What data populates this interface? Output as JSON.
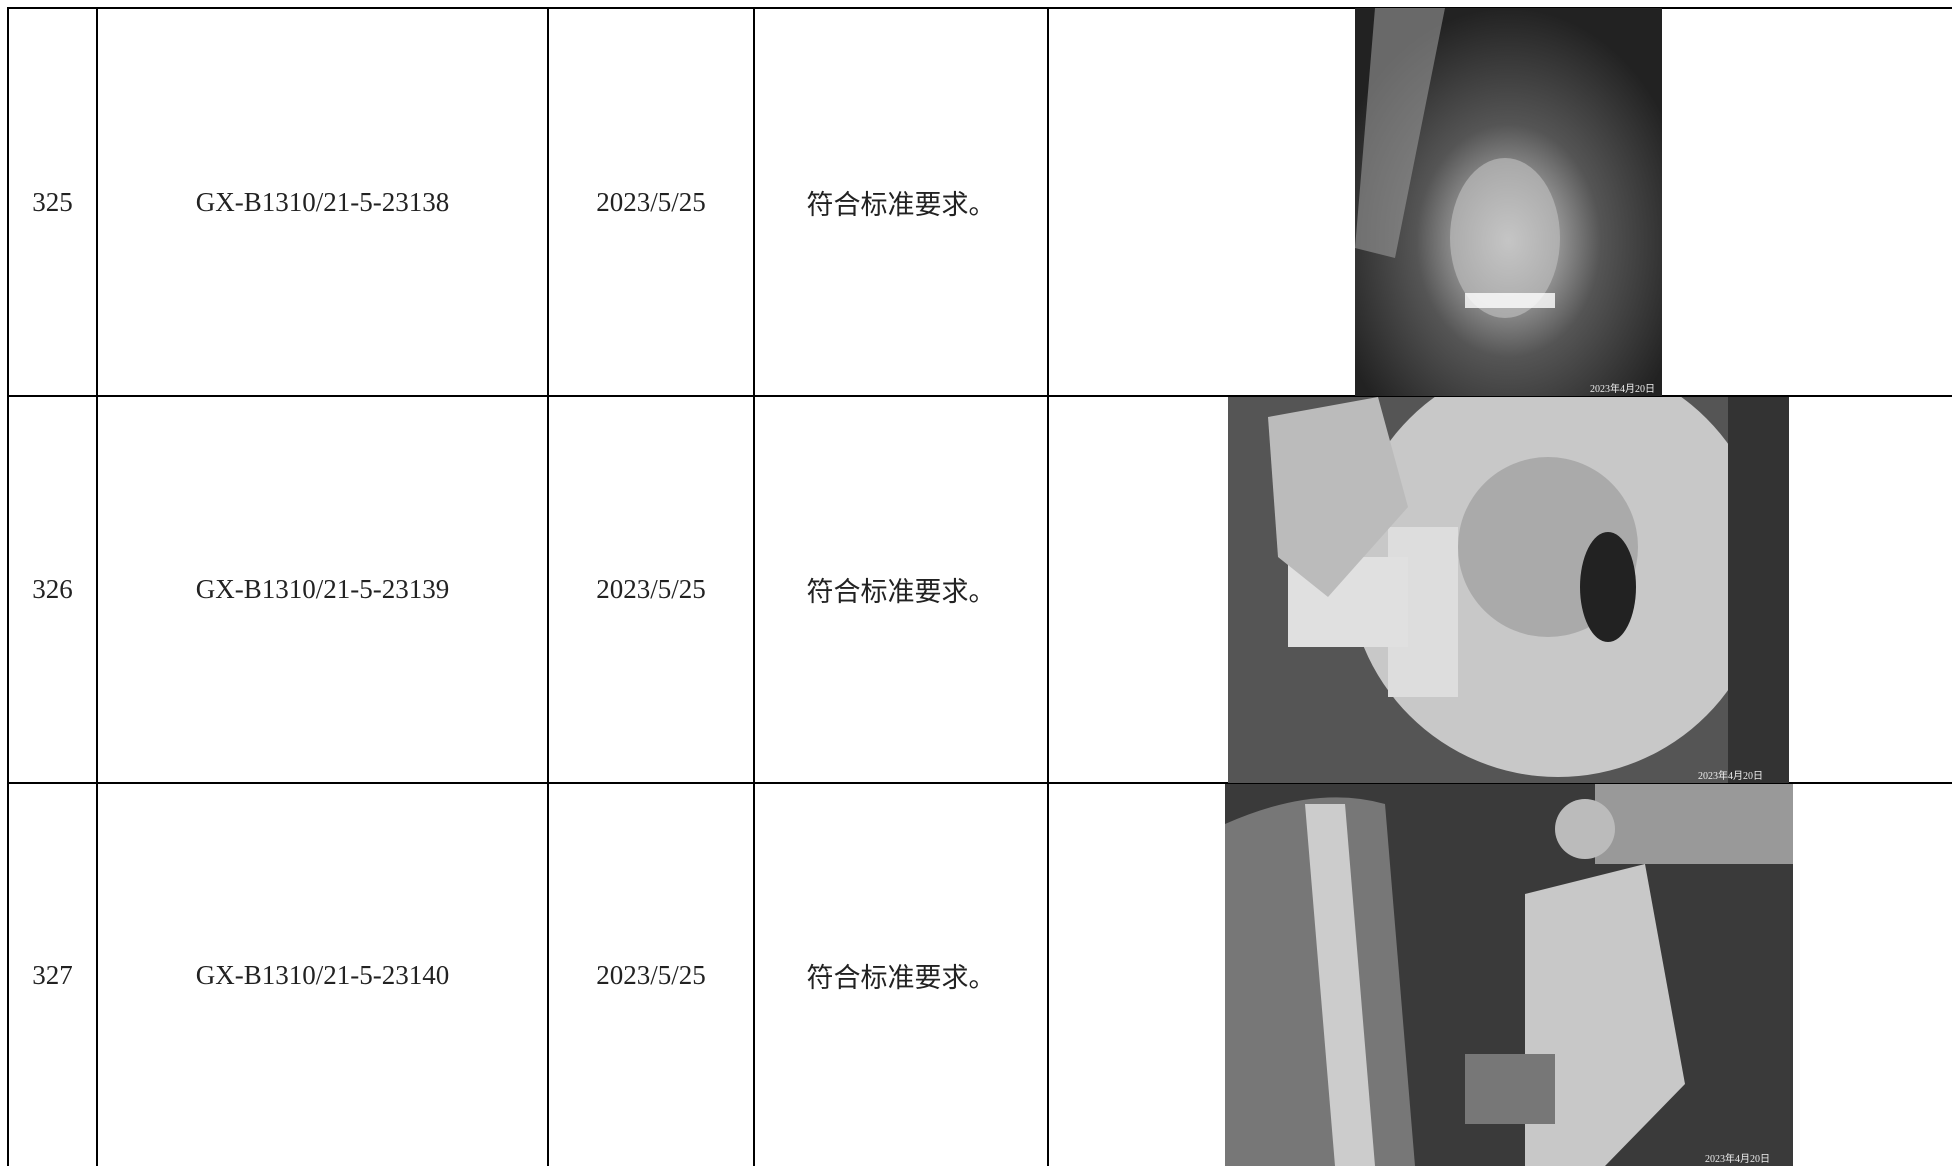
{
  "table": {
    "rows": [
      [
        "325",
        "GX-B1310/21-5-23138",
        "2023/5/25",
        "符合标准要求。"
      ],
      [
        "326",
        "GX-B1310/21-5-23139",
        "2023/5/25",
        "符合标准要求。"
      ],
      [
        "327",
        "GX-B1310/21-5-23140",
        "2023/5/25",
        "符合标准要求。"
      ]
    ]
  },
  "photos": [
    {
      "stamp": "2023年4月20日"
    },
    {
      "stamp": "2023年4月20日"
    },
    {
      "stamp": "2023年4月20日"
    }
  ]
}
